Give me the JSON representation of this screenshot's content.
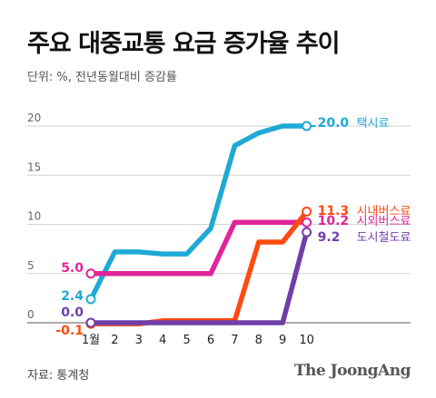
{
  "header": {
    "title": "주요 대중교통 요금 증가율 추이",
    "subtitle": "단위: %, 전년동월대비 증감률"
  },
  "footer": {
    "source": "자료: 통계청",
    "logo": "The JoongAng"
  },
  "chart_data": {
    "type": "line",
    "x": [
      "1월",
      "2",
      "3",
      "4",
      "5",
      "6",
      "7",
      "8",
      "9",
      "10"
    ],
    "ylim": [
      0,
      20
    ],
    "y_ticks": [
      "0",
      "5",
      "10",
      "15",
      "20"
    ],
    "grid": true,
    "series": [
      {
        "name": "택시료",
        "color": "#1fa9d6",
        "values": [
          2.4,
          7.2,
          7.2,
          7.0,
          7.0,
          9.6,
          18.0,
          19.3,
          20.0,
          20.0
        ],
        "start_label": "2.4",
        "end_label": "20.0"
      },
      {
        "name": "시내버스료",
        "color": "#ff4a12",
        "values": [
          -0.1,
          -0.1,
          -0.1,
          0.2,
          0.2,
          0.2,
          0.2,
          8.2,
          8.2,
          11.3
        ],
        "start_label": "-0.1",
        "end_label": "11.3"
      },
      {
        "name": "시외버스료",
        "color": "#e0259a",
        "values": [
          5.0,
          5.0,
          5.0,
          5.0,
          5.0,
          5.0,
          10.2,
          10.2,
          10.2,
          10.2
        ],
        "start_label": "5.0",
        "end_label": "10.2"
      },
      {
        "name": "도시철도료",
        "color": "#6f3fa8",
        "values": [
          0.0,
          0.0,
          0.0,
          0.0,
          0.0,
          0.0,
          0.0,
          0.0,
          0.0,
          9.2
        ],
        "start_label": "0.0",
        "end_label": "9.2"
      }
    ]
  }
}
